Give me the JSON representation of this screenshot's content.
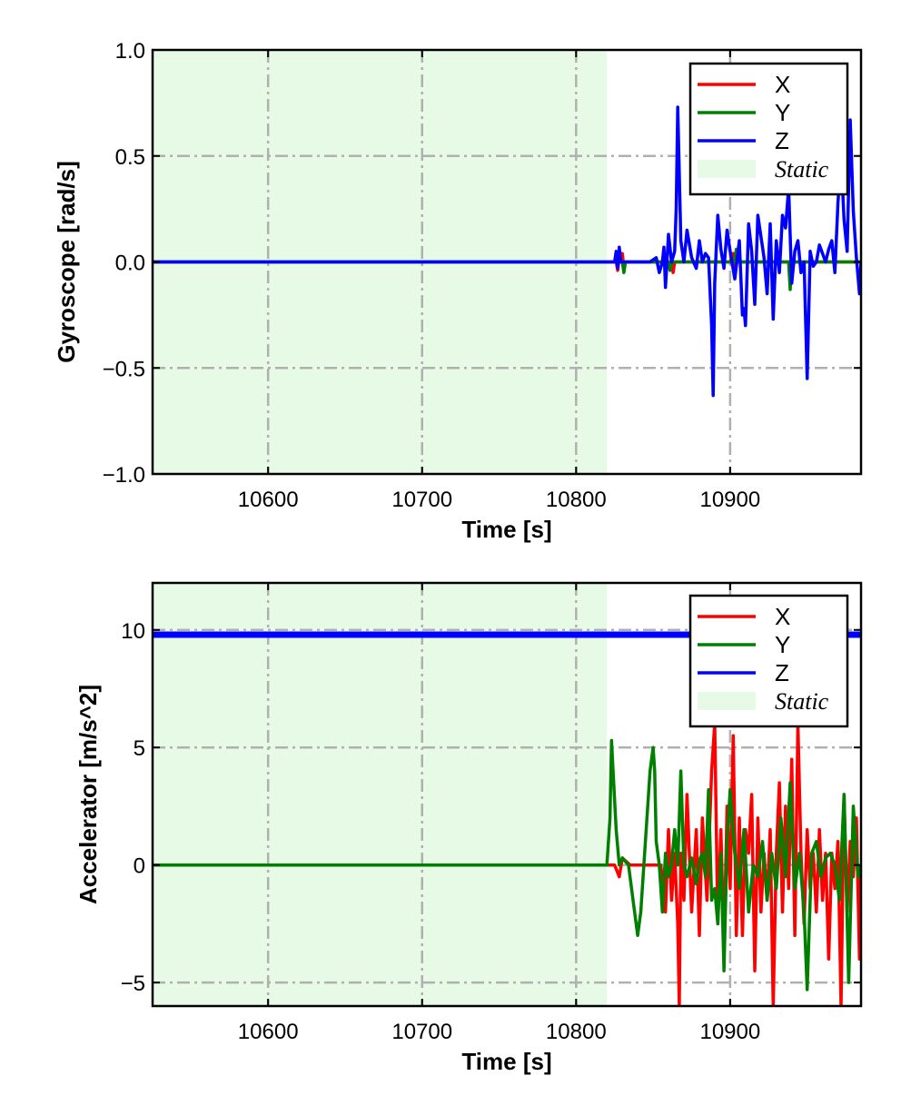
{
  "chart_data": [
    {
      "type": "line",
      "ylabel": "Gyroscope [rad/s]",
      "xlabel": "Time [s]",
      "xlim": [
        10525,
        10985
      ],
      "ylim": [
        -1.0,
        1.0
      ],
      "xticks": [
        10600,
        10700,
        10800,
        10900
      ],
      "xtick_labels": [
        "10600",
        "10700",
        "10800",
        "10900"
      ],
      "yticks": [
        -1.0,
        -0.5,
        0.0,
        0.5,
        1.0
      ],
      "ytick_labels": [
        "−1.0",
        "−0.5",
        "0.0",
        "0.5",
        "1.0"
      ],
      "grid": true,
      "legend_position": "top-right",
      "static_region": {
        "label": "Static",
        "x_start": 10525,
        "x_end": 10820,
        "color": "#e6fae6"
      },
      "series": [
        {
          "name": "X",
          "color": "#ff0000",
          "x": [
            10525,
            10826,
            10827,
            10828,
            10829,
            10830,
            10831,
            10832,
            10834,
            10850,
            10862,
            10863,
            10864,
            10870,
            10900,
            10902,
            10903,
            10904,
            10930,
            10931,
            10932,
            10985
          ],
          "y": [
            0.0,
            0.0,
            -0.04,
            0.02,
            0.0,
            0.04,
            -0.03,
            0.0,
            0.0,
            0.0,
            0.0,
            -0.05,
            0.0,
            0.0,
            0.0,
            0.04,
            -0.03,
            0.0,
            0.0,
            0.03,
            0.0,
            0.0
          ]
        },
        {
          "name": "Y",
          "color": "#008000",
          "x": [
            10525,
            10830,
            10831,
            10832,
            10834,
            10860,
            10861,
            10862,
            10903,
            10904,
            10905,
            10938,
            10939,
            10940,
            10985
          ],
          "y": [
            0.0,
            0.0,
            -0.05,
            0.0,
            0.0,
            0.0,
            -0.04,
            0.0,
            0.0,
            0.06,
            0.0,
            0.0,
            -0.13,
            0.0,
            0.0
          ]
        },
        {
          "name": "Z",
          "color": "#0000ff",
          "x": [
            10525,
            10825,
            10826,
            10827,
            10828,
            10829,
            10830,
            10840,
            10848,
            10852,
            10854,
            10856,
            10857,
            10858,
            10860,
            10862,
            10864,
            10865,
            10866,
            10868,
            10870,
            10872,
            10875,
            10878,
            10880,
            10882,
            10884,
            10886,
            10888,
            10889,
            10890,
            10892,
            10894,
            10896,
            10898,
            10900,
            10903,
            10906,
            10908,
            10909,
            10910,
            10912,
            10914,
            10916,
            10918,
            10920,
            10922,
            10924,
            10926,
            10928,
            10930,
            10932,
            10934,
            10936,
            10938,
            10940,
            10942,
            10944,
            10946,
            10948,
            10950,
            10952,
            10954,
            10956,
            10958,
            10960,
            10962,
            10964,
            10966,
            10968,
            10970,
            10972,
            10974,
            10976,
            10978,
            10980,
            10982,
            10984,
            10985
          ],
          "y": [
            0.0,
            0.0,
            0.05,
            -0.03,
            0.07,
            0.0,
            0.0,
            0.0,
            0.0,
            0.02,
            -0.05,
            0.0,
            0.07,
            -0.12,
            0.13,
            0.0,
            0.05,
            0.25,
            0.73,
            0.1,
            0.0,
            0.15,
            0.02,
            -0.03,
            0.1,
            0.0,
            0.04,
            0.02,
            -0.3,
            -0.63,
            -0.1,
            0.22,
            0.06,
            -0.03,
            0.15,
            0.05,
            -0.08,
            0.1,
            -0.25,
            -0.22,
            -0.3,
            0.18,
            0.05,
            -0.2,
            0.22,
            0.12,
            0.02,
            -0.15,
            0.18,
            -0.27,
            0.1,
            -0.05,
            0.22,
            0.16,
            0.35,
            -0.1,
            0.05,
            0.1,
            -0.05,
            0.0,
            -0.55,
            0.05,
            -0.02,
            0.0,
            0.08,
            0.04,
            0.0,
            0.06,
            0.1,
            -0.05,
            0.28,
            0.5,
            0.2,
            0.05,
            0.67,
            0.24,
            0.02,
            -0.15,
            0.0
          ]
        }
      ]
    },
    {
      "type": "line",
      "ylabel": "Accelerator [m/s^2]",
      "xlabel": "Time [s]",
      "xlim": [
        10525,
        10985
      ],
      "ylim": [
        -6,
        12
      ],
      "xticks": [
        10600,
        10700,
        10800,
        10900
      ],
      "xtick_labels": [
        "10600",
        "10700",
        "10800",
        "10900"
      ],
      "yticks": [
        -5,
        0,
        5,
        10
      ],
      "ytick_labels": [
        "−5",
        "0",
        "5",
        "10"
      ],
      "grid": true,
      "legend_position": "top-right",
      "static_region": {
        "label": "Static",
        "x_start": 10525,
        "x_end": 10820,
        "color": "#e6fae6"
      },
      "series": [
        {
          "name": "X",
          "color": "#ff0000",
          "x": [
            10525,
            10825,
            10828,
            10830,
            10835,
            10855,
            10858,
            10860,
            10862,
            10864,
            10866,
            10867,
            10868,
            10870,
            10872,
            10875,
            10878,
            10880,
            10882,
            10885,
            10888,
            10890,
            10892,
            10894,
            10896,
            10898,
            10900,
            10902,
            10904,
            10906,
            10908,
            10910,
            10912,
            10914,
            10916,
            10918,
            10920,
            10922,
            10924,
            10926,
            10928,
            10930,
            10932,
            10934,
            10936,
            10938,
            10940,
            10942,
            10944,
            10946,
            10948,
            10950,
            10952,
            10954,
            10956,
            10958,
            10960,
            10962,
            10964,
            10966,
            10968,
            10970,
            10972,
            10974,
            10976,
            10978,
            10980,
            10982,
            10984,
            10985
          ],
          "y": [
            0.0,
            0.0,
            -0.5,
            0.3,
            0.0,
            0.0,
            -2.0,
            1.5,
            -1.5,
            0.5,
            -2.5,
            -6.0,
            0.5,
            -1.5,
            3.0,
            -2.0,
            1.5,
            -3.0,
            2.0,
            -1.5,
            4.0,
            6.0,
            -2.5,
            1.5,
            -3.5,
            2.5,
            -1.0,
            5.5,
            -3.0,
            2.0,
            -3.0,
            1.5,
            0.5,
            3.0,
            -4.5,
            2.0,
            -2.0,
            0.5,
            -1.5,
            1.5,
            -6.0,
            0.5,
            3.5,
            -2.0,
            2.5,
            -1.0,
            4.5,
            -3.0,
            6.0,
            0.5,
            -2.5,
            1.5,
            -1.0,
            0.5,
            -2.0,
            1.5,
            -1.5,
            0.5,
            -4.0,
            0.5,
            -1.0,
            1.0,
            -6.0,
            3.0,
            -2.0,
            1.0,
            -0.5,
            2.0,
            -4.0,
            0.0
          ]
        },
        {
          "name": "Y",
          "color": "#008000",
          "x": [
            10525,
            10820,
            10822,
            10823,
            10824,
            10826,
            10828,
            10830,
            10834,
            10837,
            10840,
            10842,
            10844,
            10846,
            10848,
            10850,
            10851,
            10852,
            10854,
            10856,
            10858,
            10860,
            10862,
            10864,
            10866,
            10868,
            10870,
            10872,
            10875,
            10878,
            10880,
            10882,
            10884,
            10886,
            10888,
            10890,
            10892,
            10894,
            10896,
            10898,
            10900,
            10903,
            10906,
            10909,
            10912,
            10915,
            10918,
            10921,
            10924,
            10927,
            10930,
            10933,
            10936,
            10939,
            10942,
            10945,
            10948,
            10950,
            10953,
            10956,
            10959,
            10962,
            10965,
            10968,
            10971,
            10974,
            10977,
            10980,
            10983,
            10985
          ],
          "y": [
            0.0,
            0.0,
            2.0,
            5.3,
            4.0,
            1.5,
            0.0,
            0.3,
            0.0,
            -1.5,
            -3.0,
            -2.0,
            0.0,
            2.0,
            4.0,
            5.0,
            4.0,
            1.0,
            0.0,
            -2.0,
            0.5,
            -0.5,
            0.0,
            1.5,
            0.0,
            4.0,
            0.0,
            -0.5,
            0.3,
            -0.8,
            0.2,
            0.5,
            -0.5,
            3.2,
            -1.5,
            -1.0,
            -2.5,
            0.5,
            -4.5,
            1.0,
            3.2,
            0.5,
            -1.0,
            1.5,
            -2.0,
            0.0,
            -0.5,
            1.0,
            -1.5,
            0.5,
            -1.0,
            2.0,
            -0.5,
            3.5,
            -1.0,
            0.5,
            -2.0,
            -5.3,
            0.5,
            1.0,
            -0.5,
            0.3,
            0.5,
            0.0,
            -1.5,
            3.0,
            -5.0,
            2.5,
            -0.5,
            0.0
          ]
        },
        {
          "name": "Z",
          "color": "#0000ff",
          "x": [
            10525,
            10985
          ],
          "y": [
            9.8,
            9.8
          ]
        }
      ]
    }
  ]
}
